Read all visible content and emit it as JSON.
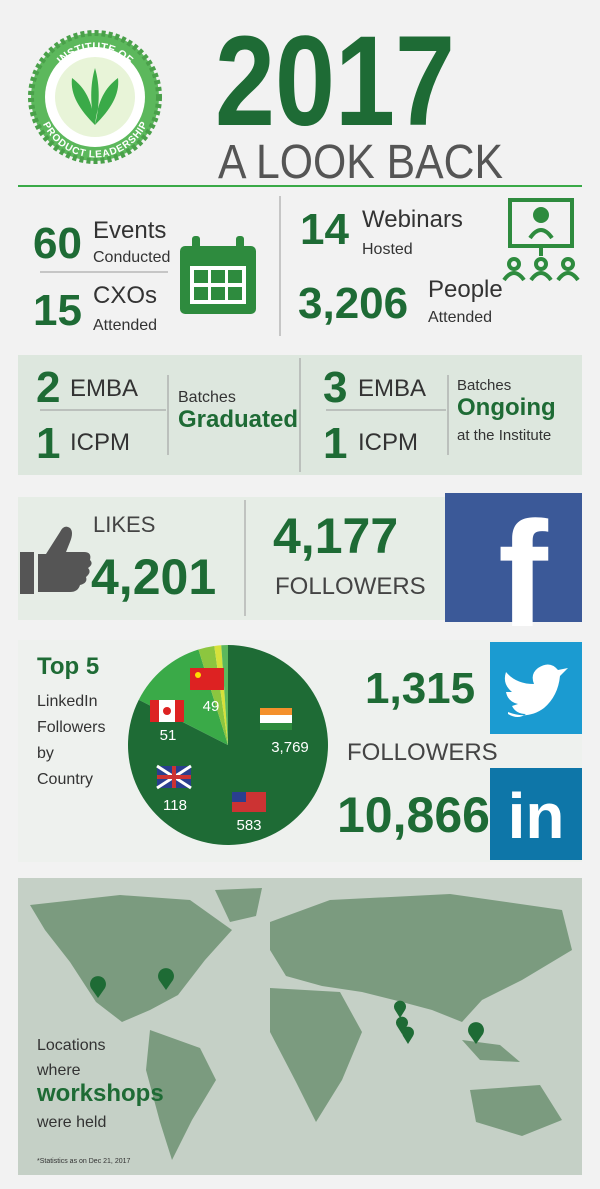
{
  "header": {
    "logo_top": "INSTITUTE OF",
    "logo_bottom": "PRODUCT LEADERSHIP",
    "year": "2017",
    "subtitle": "A LOOK BACK"
  },
  "events": {
    "events": {
      "value": "60",
      "label": "Events",
      "sub": "Conducted"
    },
    "cxos": {
      "value": "15",
      "label": "CXOs",
      "sub": "Attended"
    },
    "webinars": {
      "value": "14",
      "label": "Webinars",
      "sub": "Hosted"
    },
    "people": {
      "value": "3,206",
      "label": "People",
      "sub": "Attended"
    }
  },
  "batches": {
    "graduated": {
      "emba": "2",
      "icpm": "1",
      "emba_label": "EMBA",
      "icpm_label": "ICPM",
      "line1": "Batches",
      "line2": "Graduated"
    },
    "ongoing": {
      "emba": "3",
      "icpm": "1",
      "emba_label": "EMBA",
      "icpm_label": "ICPM",
      "line1": "Batches",
      "line2": "Ongoing",
      "line3": "at the Institute"
    }
  },
  "facebook": {
    "likes_label": "LIKES",
    "likes": "4,201",
    "followers": "4,177",
    "followers_label": "FOLLOWERS",
    "logo": "f"
  },
  "chart_data": {
    "type": "pie",
    "title": "Top 5",
    "subtitle_lines": [
      "LinkedIn",
      "Followers",
      "by",
      "Country"
    ],
    "values": [
      3769,
      583,
      118,
      51,
      49
    ],
    "value_labels": [
      "3,769",
      "583",
      "118",
      "51",
      "49"
    ],
    "colors": [
      "#1e6b35",
      "#3aaa48",
      "#8cc63f",
      "#d6e13a",
      "#5cb85c"
    ]
  },
  "social": {
    "twitter_followers": "1,315",
    "followers_label": "FOLLOWERS",
    "linkedin_followers": "10,866",
    "linkedin_logo": "in"
  },
  "map": {
    "line1": "Locations",
    "line2": "where",
    "line3": "workshops",
    "line4": "were held",
    "footnote": "*Statistics as on Dec 21, 2017"
  }
}
